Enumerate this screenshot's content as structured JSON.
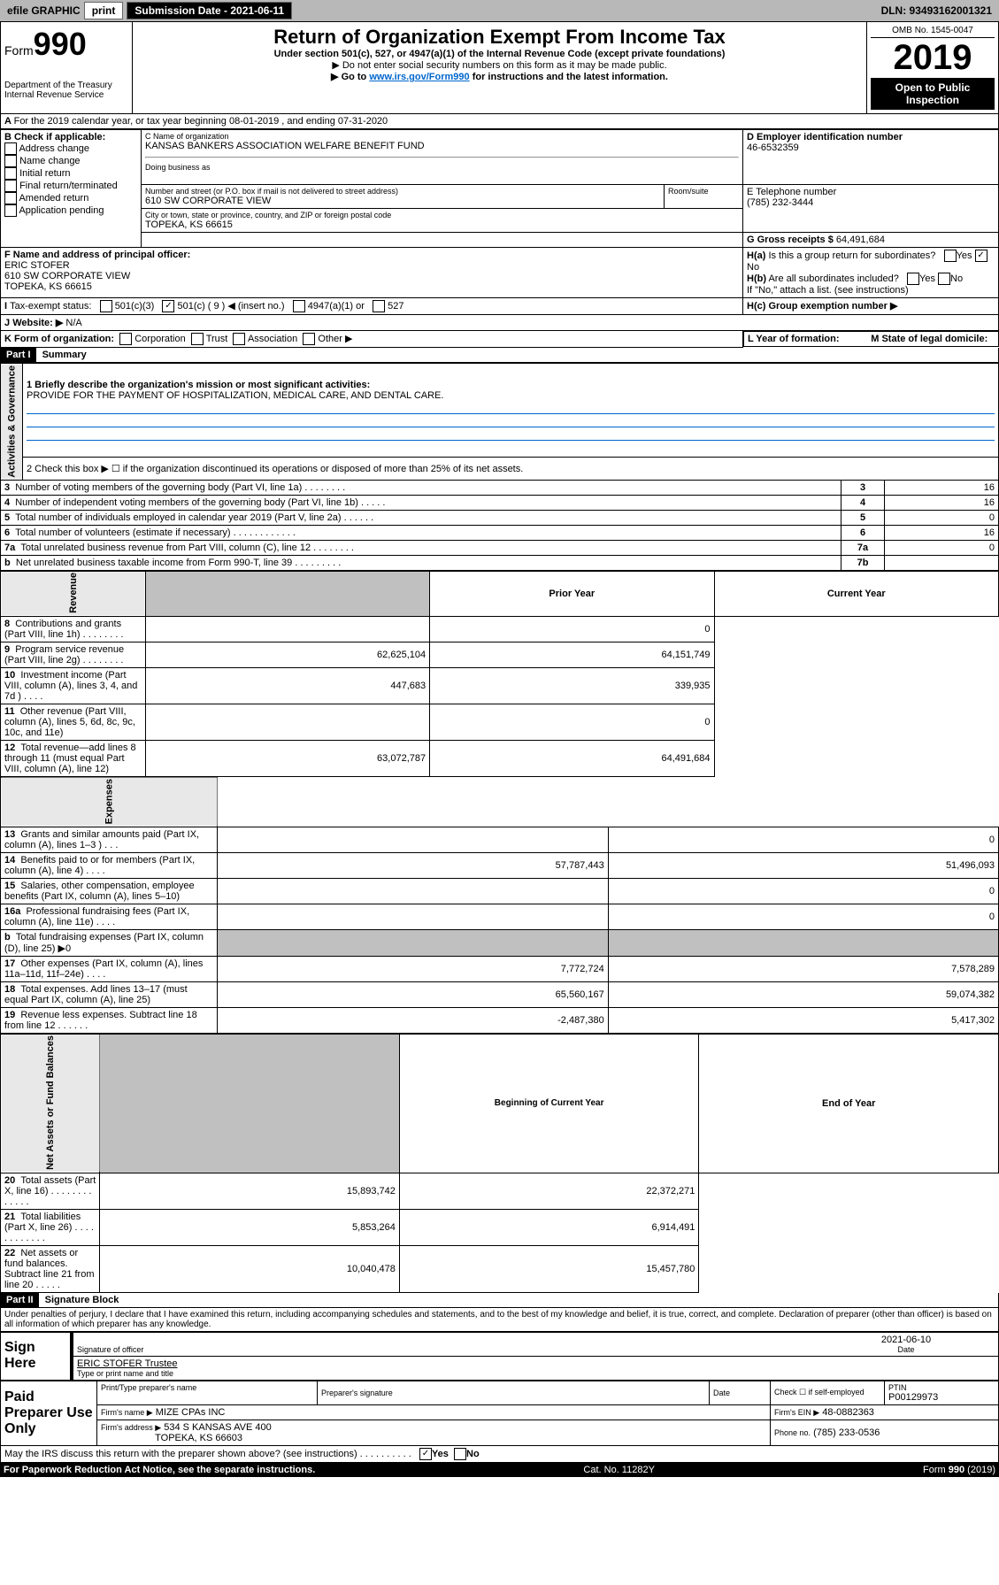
{
  "topbar": {
    "efile_label": "efile GRAPHIC",
    "print_btn": "print",
    "submission_label": "Submission Date - 2021-06-11",
    "dln_label": "DLN: 93493162001321"
  },
  "header": {
    "form_prefix": "Form",
    "form_number": "990",
    "dept": "Department of the Treasury\nInternal Revenue Service",
    "main_title": "Return of Organization Exempt From Income Tax",
    "sub1": "Under section 501(c), 527, or 4947(a)(1) of the Internal Revenue Code (except private foundations)",
    "sub2": "▶ Do not enter social security numbers on this form as it may be made public.",
    "sub3_prefix": "▶ Go to ",
    "sub3_link": "www.irs.gov/Form990",
    "sub3_suffix": " for instructions and the latest information.",
    "omb": "OMB No. 1545-0047",
    "year": "2019",
    "open_public": "Open to Public Inspection"
  },
  "period": {
    "line": "For the 2019 calendar year, or tax year beginning 08-01-2019    , and ending 07-31-2020"
  },
  "boxB": {
    "label": "B Check if applicable:",
    "items": [
      "Address change",
      "Name change",
      "Initial return",
      "Final return/terminated",
      "Amended return",
      "Application pending"
    ]
  },
  "boxC": {
    "name_label": "C Name of organization",
    "name": "KANSAS BANKERS ASSOCIATION WELFARE BENEFIT FUND",
    "dba_label": "Doing business as",
    "street_label": "Number and street (or P.O. box if mail is not delivered to street address)",
    "street": "610 SW CORPORATE VIEW",
    "room_label": "Room/suite",
    "city_label": "City or town, state or province, country, and ZIP or foreign postal code",
    "city": "TOPEKA, KS  66615"
  },
  "boxD": {
    "label": "D Employer identification number",
    "value": "46-6532359"
  },
  "boxE": {
    "label": "E Telephone number",
    "value": "(785) 232-3444"
  },
  "boxG": {
    "label": "G Gross receipts $",
    "value": "64,491,684"
  },
  "boxF": {
    "label": "F  Name and address of principal officer:",
    "name": "ERIC STOFER",
    "street": "610 SW CORPORATE VIEW",
    "city": "TOPEKA, KS  66615"
  },
  "boxH": {
    "a_label": "H(a)  Is this a group return for subordinates?",
    "a_yes": "Yes",
    "a_no": "No",
    "b_label": "H(b)  Are all subordinates included?",
    "b_yes": "Yes",
    "b_no": "No",
    "b_note": "If \"No,\" attach a list. (see instructions)",
    "c_label": "H(c)  Group exemption number ▶"
  },
  "boxI": {
    "label": "Tax-exempt status:",
    "opts": [
      "501(c)(3)",
      "501(c) ( 9 ) ◀ (insert no.)",
      "4947(a)(1) or",
      "527"
    ]
  },
  "boxJ": {
    "label": "Website: ▶",
    "value": "N/A"
  },
  "boxK": {
    "label": "K Form of organization:",
    "opts": [
      "Corporation",
      "Trust",
      "Association",
      "Other ▶"
    ]
  },
  "boxL": {
    "label": "L Year of formation:"
  },
  "boxM": {
    "label": "M State of legal domicile:"
  },
  "part1": {
    "header": "Part I",
    "title": "Summary",
    "line1_label": "1  Briefly describe the organization's mission or most significant activities:",
    "line1_value": "PROVIDE FOR THE PAYMENT OF HOSPITALIZATION, MEDICAL CARE, AND DENTAL CARE.",
    "line2": "2   Check this box ▶ ☐  if the organization discontinued its operations or disposed of more than 25% of its net assets.",
    "rows_gov": [
      {
        "n": "3",
        "label": "Number of voting members of the governing body (Part VI, line 1a)   .    .    .    .    .    .    .    .",
        "col": "3",
        "val": "16"
      },
      {
        "n": "4",
        "label": "Number of independent voting members of the governing body (Part VI, line 1b)   .    .    .    .    .",
        "col": "4",
        "val": "16"
      },
      {
        "n": "5",
        "label": "Total number of individuals employed in calendar year 2019 (Part V, line 2a)   .    .    .    .    .    .",
        "col": "5",
        "val": "0"
      },
      {
        "n": "6",
        "label": "Total number of volunteers (estimate if necessary)   .    .    .    .    .    .    .    .    .    .    .    .",
        "col": "6",
        "val": "16"
      },
      {
        "n": "7a",
        "label": "Total unrelated business revenue from Part VIII, column (C), line 12   .    .    .    .    .    .    .    .",
        "col": "7a",
        "val": "0"
      },
      {
        "n": "b",
        "label": "Net unrelated business taxable income from Form 990-T, line 39   .    .    .    .    .    .    .    .    .",
        "col": "7b",
        "val": ""
      }
    ],
    "header_cols": {
      "prior": "Prior Year",
      "current": "Current Year"
    },
    "rows_rev": [
      {
        "n": "8",
        "label": "Contributions and grants (Part VIII, line 1h)   .    .    .    .    .    .    .    .",
        "p": "",
        "c": "0"
      },
      {
        "n": "9",
        "label": "Program service revenue (Part VIII, line 2g)   .    .    .    .    .    .    .    .",
        "p": "62,625,104",
        "c": "64,151,749"
      },
      {
        "n": "10",
        "label": "Investment income (Part VIII, column (A), lines 3, 4, and 7d )   .    .    .    .",
        "p": "447,683",
        "c": "339,935"
      },
      {
        "n": "11",
        "label": "Other revenue (Part VIII, column (A), lines 5, 6d, 8c, 9c, 10c, and 11e)",
        "p": "",
        "c": "0"
      },
      {
        "n": "12",
        "label": "Total revenue—add lines 8 through 11 (must equal Part VIII, column (A), line 12)",
        "p": "63,072,787",
        "c": "64,491,684"
      }
    ],
    "rows_exp": [
      {
        "n": "13",
        "label": "Grants and similar amounts paid (Part IX, column (A), lines 1–3 )   .    .    .",
        "p": "",
        "c": "0"
      },
      {
        "n": "14",
        "label": "Benefits paid to or for members (Part IX, column (A), line 4)   .    .    .    .",
        "p": "57,787,443",
        "c": "51,496,093"
      },
      {
        "n": "15",
        "label": "Salaries, other compensation, employee benefits (Part IX, column (A), lines 5–10)",
        "p": "",
        "c": "0"
      },
      {
        "n": "16a",
        "label": "Professional fundraising fees (Part IX, column (A), line 11e)   .    .    .    .",
        "p": "",
        "c": "0"
      },
      {
        "n": "b",
        "label": "Total fundraising expenses (Part IX, column (D), line 25) ▶0",
        "p": "GRAY",
        "c": "GRAY"
      },
      {
        "n": "17",
        "label": "Other expenses (Part IX, column (A), lines 11a–11d, 11f–24e)   .    .    .    .",
        "p": "7,772,724",
        "c": "7,578,289"
      },
      {
        "n": "18",
        "label": "Total expenses. Add lines 13–17 (must equal Part IX, column (A), line 25)",
        "p": "65,560,167",
        "c": "59,074,382"
      },
      {
        "n": "19",
        "label": "Revenue less expenses. Subtract line 18 from line 12   .    .    .    .    .    .",
        "p": "-2,487,380",
        "c": "5,417,302"
      }
    ],
    "header_cols2": {
      "begin": "Beginning of Current Year",
      "end": "End of Year"
    },
    "rows_net": [
      {
        "n": "20",
        "label": "Total assets (Part X, line 16)   .    .    .    .    .    .    .    .    .    .    .    .    .",
        "p": "15,893,742",
        "c": "22,372,271"
      },
      {
        "n": "21",
        "label": "Total liabilities (Part X, line 26)   .    .    .    .    .    .    .    .    .    .    .    .",
        "p": "5,853,264",
        "c": "6,914,491"
      },
      {
        "n": "22",
        "label": "Net assets or fund balances. Subtract line 21 from line 20   .    .    .    .    .",
        "p": "10,040,478",
        "c": "15,457,780"
      }
    ],
    "vert_labels": {
      "gov": "Activities & Governance",
      "rev": "Revenue",
      "exp": "Expenses",
      "net": "Net Assets or Fund Balances"
    }
  },
  "part2": {
    "header": "Part II",
    "title": "Signature Block",
    "declaration": "Under penalties of perjury, I declare that I have examined this return, including accompanying schedules and statements, and to the best of my knowledge and belief, it is true, correct, and complete. Declaration of preparer (other than officer) is based on all information of which preparer has any knowledge.",
    "sign_here": "Sign Here",
    "sig_officer": "Signature of officer",
    "date_label": "Date",
    "date_value": "2021-06-10",
    "name_title": "ERIC STOFER  Trustee",
    "type_name": "Type or print name and title",
    "paid_prep": "Paid Preparer Use Only",
    "print_prep": "Print/Type preparer's name",
    "prep_sig": "Preparer's signature",
    "check_self": "Check ☐ if self-employed",
    "ptin_label": "PTIN",
    "ptin": "P00129973",
    "firm_name_label": "Firm's name      ▶",
    "firm_name": "MIZE CPAs INC",
    "firm_ein_label": "Firm's EIN ▶",
    "firm_ein": "48-0882363",
    "firm_addr_label": "Firm's address ▶",
    "firm_addr1": "534 S KANSAS AVE 400",
    "firm_addr2": "TOPEKA, KS  66603",
    "phone_label": "Phone no.",
    "phone": "(785) 233-0536",
    "discuss": "May the IRS discuss this return with the preparer shown above? (see instructions)   .    .    .    .    .    .    .    .    .    .",
    "discuss_yes": "Yes",
    "discuss_no": "No"
  },
  "footer": {
    "pra": "For Paperwork Reduction Act Notice, see the separate instructions.",
    "cat": "Cat. No. 11282Y",
    "form": "Form 990 (2019)"
  }
}
